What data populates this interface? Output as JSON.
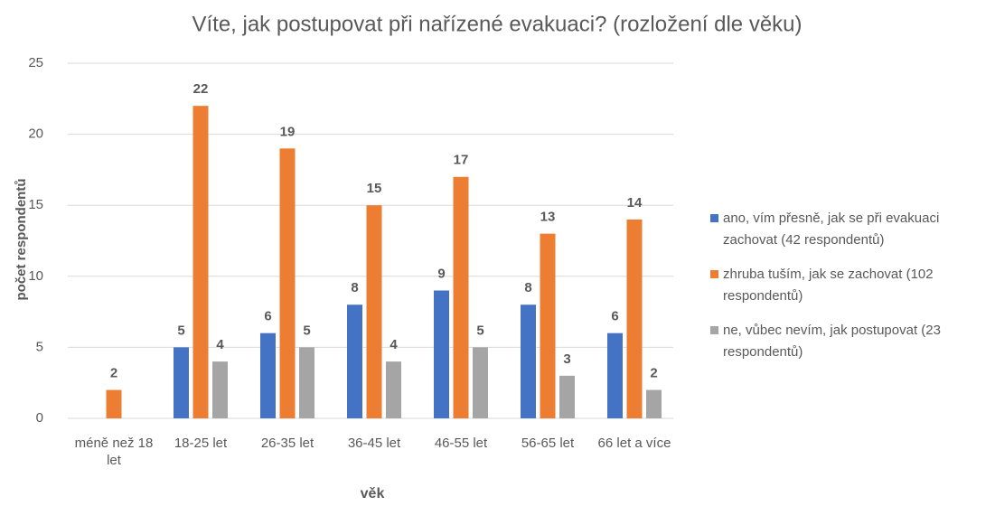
{
  "chart_data": {
    "type": "bar",
    "title": "Víte, jak postupovat při nařízené evakuaci? (rozložení dle věku)",
    "xlabel": "věk",
    "ylabel": "počet respondentů",
    "categories": [
      "méně než 18 let",
      "18-25 let",
      "26-35 let",
      "36-45 let",
      "46-55 let",
      "56-65 let",
      "66 let a více"
    ],
    "series": [
      {
        "name": "ano, vím přesně, jak se při evakuaci zachovat (42 respondentů)",
        "color": "#4472c4",
        "values": [
          null,
          5,
          6,
          8,
          9,
          8,
          6
        ]
      },
      {
        "name": "zhruba tuším, jak se zachovat (102 respondentů)",
        "color": "#ed7d31",
        "values": [
          2,
          22,
          19,
          15,
          17,
          13,
          14
        ]
      },
      {
        "name": "ne, vůbec nevím, jak postupovat (23 respondentů)",
        "color": "#a5a5a5",
        "values": [
          null,
          4,
          5,
          4,
          5,
          3,
          2
        ]
      }
    ],
    "ylim": [
      0,
      25
    ],
    "yticks": [
      0,
      5,
      10,
      15,
      20,
      25
    ],
    "grid": true,
    "legend": "right"
  }
}
